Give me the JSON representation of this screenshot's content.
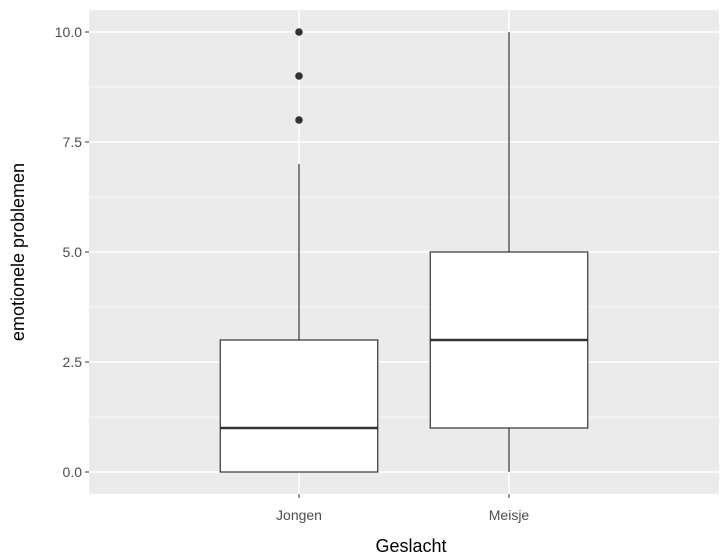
{
  "chart_data": {
    "type": "boxplot",
    "xlabel": "Geslacht",
    "ylabel": "emotionele problemen",
    "categories": [
      "Jongen",
      "Meisje"
    ],
    "y_ticks": [
      {
        "value": 0,
        "label": "0.0"
      },
      {
        "value": 2.5,
        "label": "2.5"
      },
      {
        "value": 5,
        "label": "5.0"
      },
      {
        "value": 7.5,
        "label": "7.5"
      },
      {
        "value": 10,
        "label": "10.0"
      }
    ],
    "ylim": [
      -0.5,
      10.5
    ],
    "grid": true,
    "boxes": [
      {
        "category": "Jongen",
        "whisker_low": 0,
        "q1": 0,
        "median": 1,
        "q3": 3,
        "whisker_high": 7,
        "outliers": [
          8,
          9,
          10
        ]
      },
      {
        "category": "Meisje",
        "whisker_low": 0,
        "q1": 1,
        "median": 3,
        "q3": 5,
        "whisker_high": 10,
        "outliers": []
      }
    ],
    "colors": {
      "panel": "#ebebeb",
      "grid": "#ffffff",
      "box_fill": "#ffffff",
      "box_stroke": "#333333",
      "tick_text": "#4d4d4d"
    }
  }
}
